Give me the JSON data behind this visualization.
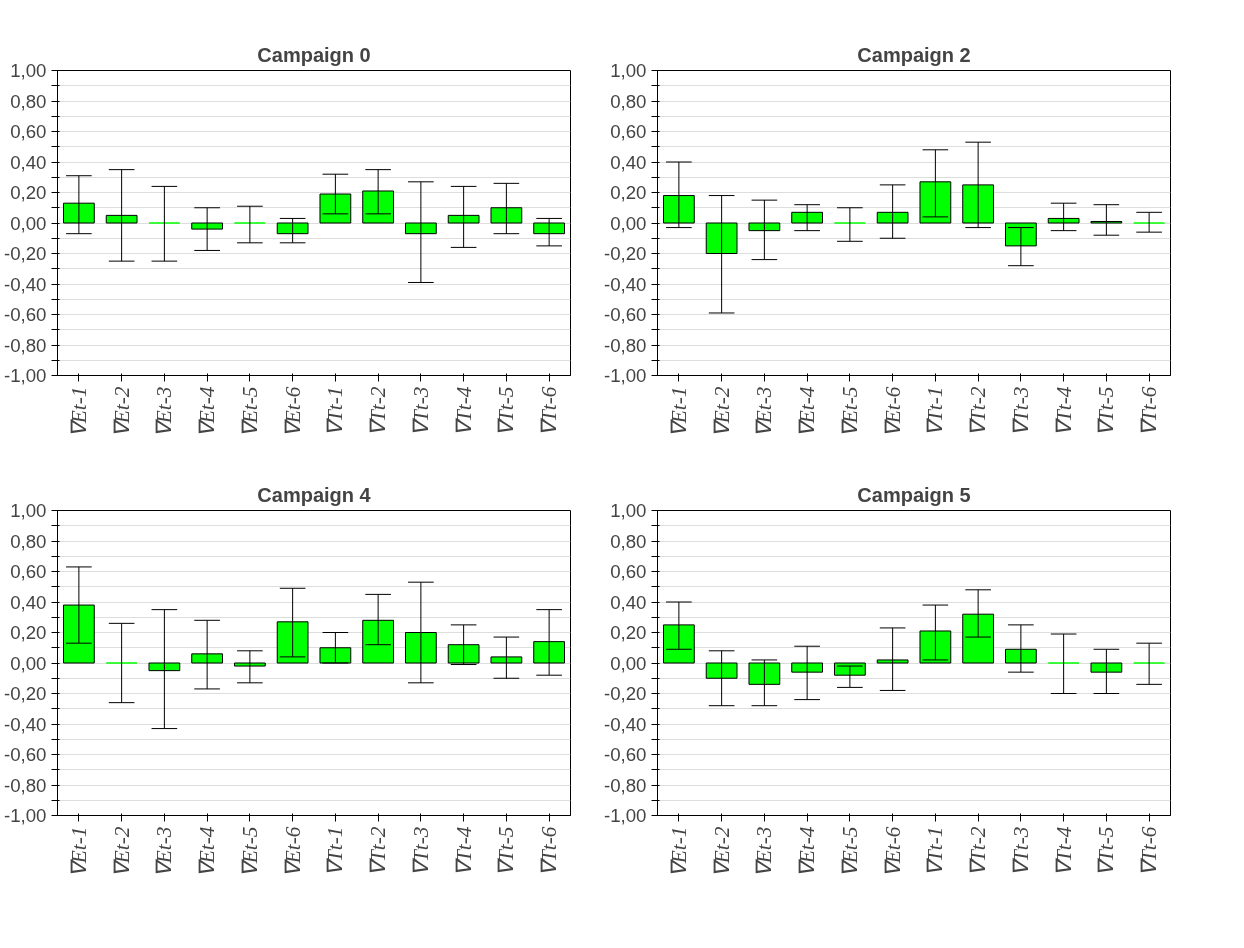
{
  "chart_data": [
    {
      "type": "bar",
      "title": "Campaign 0",
      "categories": [
        "∇Et-1",
        "∇Et-2",
        "∇Et-3",
        "∇Et-4",
        "∇Et-5",
        "∇Et-6",
        "∇Tt-1",
        "∇Tt-2",
        "∇Tt-3",
        "∇Tt-4",
        "∇Tt-5",
        "∇Tt-6"
      ],
      "values": [
        0.13,
        0.05,
        0,
        -0.04,
        0,
        -0.07,
        0.19,
        0.21,
        -0.07,
        0.05,
        0.1,
        -0.07
      ],
      "color": "#00ff00",
      "errors": [
        [
          -0.07,
          0.31
        ],
        [
          -0.25,
          0.35
        ],
        [
          -0.25,
          0.24
        ],
        [
          -0.18,
          0.1
        ],
        [
          -0.13,
          0.11
        ],
        [
          -0.13,
          0.03
        ],
        [
          0.06,
          0.32
        ],
        [
          0.06,
          0.35
        ],
        [
          -0.39,
          0.27
        ],
        [
          -0.16,
          0.24
        ],
        [
          -0.07,
          0.26
        ],
        [
          -0.15,
          0.03
        ]
      ],
      "ylim": [
        -1,
        1
      ],
      "yticks": [
        {
          "value": -1,
          "label": "-1,00"
        },
        {
          "value": -0.9,
          "label": null
        },
        {
          "value": -0.8,
          "label": "-0,80"
        },
        {
          "value": -0.7,
          "label": null
        },
        {
          "value": -0.6,
          "label": "-0,60"
        },
        {
          "value": -0.5,
          "label": null
        },
        {
          "value": -0.4,
          "label": "-0,40"
        },
        {
          "value": -0.3,
          "label": null
        },
        {
          "value": -0.2,
          "label": "-0,20"
        },
        {
          "value": -0.1,
          "label": null
        },
        {
          "value": 0,
          "label": "0,00"
        },
        {
          "value": 0.1,
          "label": null
        },
        {
          "value": 0.2,
          "label": "0,20"
        },
        {
          "value": 0.3,
          "label": null
        },
        {
          "value": 0.4,
          "label": "0,40"
        },
        {
          "value": 0.5,
          "label": null
        },
        {
          "value": 0.6,
          "label": "0,60"
        },
        {
          "value": 0.7,
          "label": null
        },
        {
          "value": 0.8,
          "label": "0,80"
        },
        {
          "value": 0.9,
          "label": null
        },
        {
          "value": 1,
          "label": "1,00"
        }
      ],
      "grid": "y"
    },
    {
      "type": "bar",
      "title": "Campaign 2",
      "categories": [
        "∇Et-1",
        "∇Et-2",
        "∇Et-3",
        "∇Et-4",
        "∇Et-5",
        "∇Et-6",
        "∇Tt-1",
        "∇Tt-2",
        "∇Tt-3",
        "∇Tt-4",
        "∇Tt-5",
        "∇Tt-6"
      ],
      "values": [
        0.18,
        -0.2,
        -0.05,
        0.07,
        0,
        0.07,
        0.27,
        0.25,
        -0.15,
        0.03,
        0.01,
        0
      ],
      "color": "#00ff00",
      "errors": [
        [
          -0.03,
          0.4
        ],
        [
          -0.59,
          0.18
        ],
        [
          -0.24,
          0.15
        ],
        [
          -0.05,
          0.12
        ],
        [
          -0.12,
          0.1
        ],
        [
          -0.1,
          0.25
        ],
        [
          0.04,
          0.48
        ],
        [
          -0.03,
          0.53
        ],
        [
          -0.28,
          -0.03
        ],
        [
          -0.05,
          0.13
        ],
        [
          -0.08,
          0.12
        ],
        [
          -0.06,
          0.07
        ]
      ],
      "ylim": [
        -1,
        1
      ],
      "yticks": [
        {
          "value": -1,
          "label": "-1,00"
        },
        {
          "value": -0.9,
          "label": null
        },
        {
          "value": -0.8,
          "label": "-0,80"
        },
        {
          "value": -0.7,
          "label": null
        },
        {
          "value": -0.6,
          "label": "-0,60"
        },
        {
          "value": -0.5,
          "label": null
        },
        {
          "value": -0.4,
          "label": "-0,40"
        },
        {
          "value": -0.3,
          "label": null
        },
        {
          "value": -0.2,
          "label": "-0,20"
        },
        {
          "value": -0.1,
          "label": null
        },
        {
          "value": 0,
          "label": "0,00"
        },
        {
          "value": 0.1,
          "label": null
        },
        {
          "value": 0.2,
          "label": "0,20"
        },
        {
          "value": 0.3,
          "label": null
        },
        {
          "value": 0.4,
          "label": "0,40"
        },
        {
          "value": 0.5,
          "label": null
        },
        {
          "value": 0.6,
          "label": "0,60"
        },
        {
          "value": 0.7,
          "label": null
        },
        {
          "value": 0.8,
          "label": "0,80"
        },
        {
          "value": 0.9,
          "label": null
        },
        {
          "value": 1,
          "label": "1,00"
        }
      ],
      "grid": "y"
    },
    {
      "type": "bar",
      "title": "Campaign 4",
      "categories": [
        "∇Et-1",
        "∇Et-2",
        "∇Et-3",
        "∇Et-4",
        "∇Et-5",
        "∇Et-6",
        "∇Tt-1",
        "∇Tt-2",
        "∇Tt-3",
        "∇Tt-4",
        "∇Tt-5",
        "∇Tt-6"
      ],
      "values": [
        0.38,
        0,
        -0.05,
        0.06,
        -0.02,
        0.27,
        0.1,
        0.28,
        0.2,
        0.12,
        0.04,
        0.14
      ],
      "color": "#00ff00",
      "errors": [
        [
          0.13,
          0.63
        ],
        [
          -0.26,
          0.26
        ],
        [
          -0.43,
          0.35
        ],
        [
          -0.17,
          0.28
        ],
        [
          -0.13,
          0.08
        ],
        [
          0.04,
          0.49
        ],
        [
          0.0,
          0.2
        ],
        [
          0.12,
          0.45
        ],
        [
          -0.13,
          0.53
        ],
        [
          -0.01,
          0.25
        ],
        [
          -0.1,
          0.17
        ],
        [
          -0.08,
          0.35
        ]
      ],
      "ylim": [
        -1,
        1
      ],
      "yticks": [
        {
          "value": -1,
          "label": "-1,00"
        },
        {
          "value": -0.9,
          "label": null
        },
        {
          "value": -0.8,
          "label": "-0,80"
        },
        {
          "value": -0.7,
          "label": null
        },
        {
          "value": -0.6,
          "label": "-0,60"
        },
        {
          "value": -0.5,
          "label": null
        },
        {
          "value": -0.4,
          "label": "-0,40"
        },
        {
          "value": -0.3,
          "label": null
        },
        {
          "value": -0.2,
          "label": "-0,20"
        },
        {
          "value": -0.1,
          "label": null
        },
        {
          "value": 0,
          "label": "0,00"
        },
        {
          "value": 0.1,
          "label": null
        },
        {
          "value": 0.2,
          "label": "0,20"
        },
        {
          "value": 0.3,
          "label": null
        },
        {
          "value": 0.4,
          "label": "0,40"
        },
        {
          "value": 0.5,
          "label": null
        },
        {
          "value": 0.6,
          "label": "0,60"
        },
        {
          "value": 0.7,
          "label": null
        },
        {
          "value": 0.8,
          "label": "0,80"
        },
        {
          "value": 0.9,
          "label": null
        },
        {
          "value": 1,
          "label": "1,00"
        }
      ],
      "grid": "y"
    },
    {
      "type": "bar",
      "title": "Campaign 5",
      "categories": [
        "∇Et-1",
        "∇Et-2",
        "∇Et-3",
        "∇Et-4",
        "∇Et-5",
        "∇Et-6",
        "∇Tt-1",
        "∇Tt-2",
        "∇Tt-3",
        "∇Tt-4",
        "∇Tt-5",
        "∇Tt-6"
      ],
      "values": [
        0.25,
        -0.1,
        -0.14,
        -0.06,
        -0.08,
        0.02,
        0.21,
        0.32,
        0.09,
        0,
        -0.06,
        0
      ],
      "color": "#00ff00",
      "errors": [
        [
          0.09,
          0.4
        ],
        [
          -0.28,
          0.08
        ],
        [
          -0.28,
          0.02
        ],
        [
          -0.24,
          0.11
        ],
        [
          -0.16,
          -0.02
        ],
        [
          -0.18,
          0.23
        ],
        [
          0.02,
          0.38
        ],
        [
          0.17,
          0.48
        ],
        [
          -0.06,
          0.25
        ],
        [
          -0.2,
          0.19
        ],
        [
          -0.2,
          0.09
        ],
        [
          -0.14,
          0.13
        ]
      ],
      "ylim": [
        -1,
        1
      ],
      "yticks": [
        {
          "value": -1,
          "label": "-1,00"
        },
        {
          "value": -0.9,
          "label": null
        },
        {
          "value": -0.8,
          "label": "-0,80"
        },
        {
          "value": -0.7,
          "label": null
        },
        {
          "value": -0.6,
          "label": "-0,60"
        },
        {
          "value": -0.5,
          "label": null
        },
        {
          "value": -0.4,
          "label": "-0,40"
        },
        {
          "value": -0.3,
          "label": null
        },
        {
          "value": -0.2,
          "label": "-0,20"
        },
        {
          "value": -0.1,
          "label": null
        },
        {
          "value": 0,
          "label": "0,00"
        },
        {
          "value": 0.1,
          "label": null
        },
        {
          "value": 0.2,
          "label": "0,20"
        },
        {
          "value": 0.3,
          "label": null
        },
        {
          "value": 0.4,
          "label": "0,40"
        },
        {
          "value": 0.5,
          "label": null
        },
        {
          "value": 0.6,
          "label": "0,60"
        },
        {
          "value": 0.7,
          "label": null
        },
        {
          "value": 0.8,
          "label": "0,80"
        },
        {
          "value": 0.9,
          "label": null
        },
        {
          "value": 1,
          "label": "1,00"
        }
      ],
      "grid": "y"
    }
  ]
}
